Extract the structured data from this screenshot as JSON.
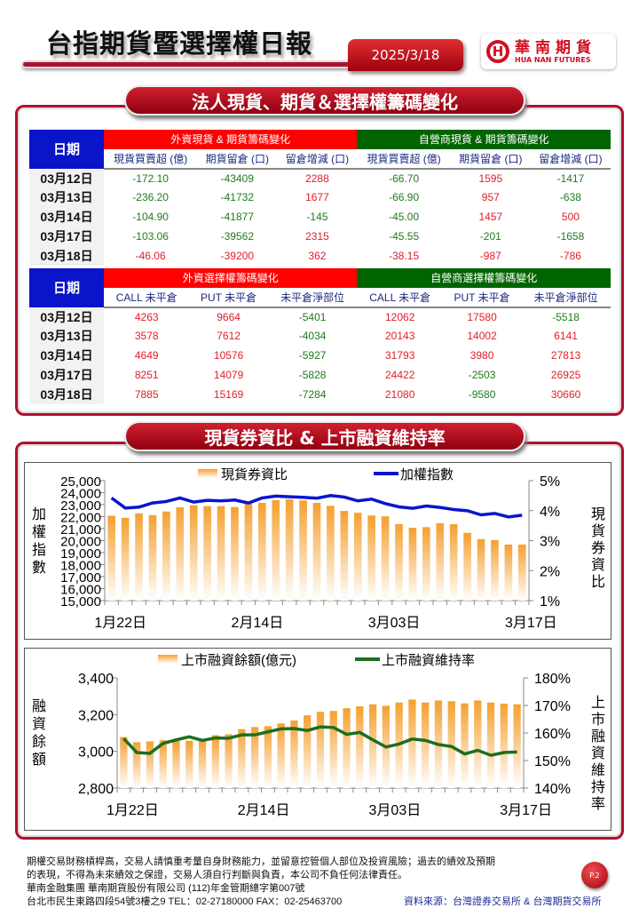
{
  "header": {
    "title": "台指期貨暨選擇權日報",
    "date": "2025/3/18",
    "logo_zh": "華南期貨",
    "logo_en": "HUA NAN FUTURES"
  },
  "section1": {
    "title": "法人現貨、期貨＆選擇權籌碼變化"
  },
  "table1": {
    "date_header": "日期",
    "group_foreign": "外資現貨 & 期貨籌碼變化",
    "group_dealer": "自營商現貨 & 期貨籌碼變化",
    "columns": [
      "現貨買賣超 (億)",
      "期貨留倉 (口)",
      "留倉增減 (口)",
      "現貨買賣超 (億)",
      "期貨留倉 (口)",
      "留倉增減 (口)"
    ],
    "rows": [
      {
        "date": "03月12日",
        "values": [
          "-172.10",
          "-43409",
          "2288",
          "-66.70",
          "1595",
          "-1417"
        ]
      },
      {
        "date": "03月13日",
        "values": [
          "-236.20",
          "-41732",
          "1677",
          "-66.90",
          "957",
          "-638"
        ]
      },
      {
        "date": "03月14日",
        "values": [
          "-104.90",
          "-41877",
          "-145",
          "-45.00",
          "1457",
          "500"
        ]
      },
      {
        "date": "03月17日",
        "values": [
          "-103.06",
          "-39562",
          "2315",
          "-45.55",
          "-201",
          "-1658"
        ]
      },
      {
        "date": "03月18日",
        "values": [
          "-46.06",
          "-39200",
          "362",
          "-38.15",
          "-987",
          "-786"
        ],
        "all_red": true
      }
    ]
  },
  "table2": {
    "date_header": "日期",
    "group_foreign": "外資選擇權籌碼變化",
    "group_dealer": "自營商選擇權籌碼變化",
    "columns": [
      "CALL 未平倉",
      "PUT  未平倉",
      "未平倉淨部位",
      "CALL 未平倉",
      "PUT  未平倉",
      "未平倉淨部位"
    ],
    "rows": [
      {
        "date": "03月12日",
        "values": [
          "4263",
          "9664",
          "-5401",
          "12062",
          "17580",
          "-5518"
        ]
      },
      {
        "date": "03月13日",
        "values": [
          "3578",
          "7612",
          "-4034",
          "20143",
          "14002",
          "6141"
        ]
      },
      {
        "date": "03月14日",
        "values": [
          "4649",
          "10576",
          "-5927",
          "31793",
          "3980",
          "27813"
        ]
      },
      {
        "date": "03月17日",
        "values": [
          "8251",
          "14079",
          "-5828",
          "24422",
          "-2503",
          "26925"
        ]
      },
      {
        "date": "03月18日",
        "values": [
          "7885",
          "15169",
          "-7284",
          "21080",
          "-9580",
          "30660"
        ]
      }
    ]
  },
  "section2": {
    "title": "現貨券資比 & 上市融資維持率"
  },
  "colors": {
    "positive": "#e0202a",
    "negative": "#1f7a1f",
    "index_line": "#0a14d0",
    "maint_line": "#1e6e1e",
    "bar": "#f5a030"
  },
  "chart_data": [
    {
      "type": "bar+line",
      "title": "",
      "legend": [
        "現貨券資比",
        "加權指數"
      ],
      "legend_position": "top",
      "ylabel_left": "加權指數",
      "ylabel_right": "現貨券資比",
      "ylim_left": [
        15000,
        25000
      ],
      "yticks_left": [
        "25,000",
        "24,000",
        "23,000",
        "22,000",
        "21,000",
        "20,000",
        "19,000",
        "18,000",
        "17,000",
        "16,000",
        "15,000"
      ],
      "ylim_right": [
        1,
        5
      ],
      "yticks_right": [
        "5%",
        "4%",
        "3%",
        "2%",
        "1%"
      ],
      "xticks": [
        {
          "index": 0,
          "label": "1月22日"
        },
        {
          "index": 10,
          "label": "2月14日"
        },
        {
          "index": 20,
          "label": "3月03日"
        },
        {
          "index": 30,
          "label": "3月17日"
        }
      ],
      "bars_pct": [
        3.83,
        3.76,
        3.91,
        3.85,
        3.97,
        4.11,
        4.18,
        4.15,
        4.15,
        4.12,
        4.24,
        4.26,
        4.35,
        4.38,
        4.34,
        4.26,
        4.16,
        3.99,
        3.93,
        3.84,
        3.81,
        3.55,
        3.43,
        3.45,
        3.58,
        3.55,
        3.26,
        3.05,
        3.02,
        2.87,
        2.87
      ],
      "line_index": [
        23561,
        22717,
        22792,
        23139,
        23263,
        23561,
        23213,
        23362,
        23313,
        23387,
        23139,
        23561,
        23710,
        23660,
        23610,
        23536,
        23759,
        23635,
        23313,
        23462,
        23089,
        22816,
        22692,
        22891,
        22767,
        22593,
        22494,
        22146,
        22270,
        21973,
        22122
      ]
    },
    {
      "type": "bar+line",
      "title": "",
      "legend": [
        "上市融資餘額(億元)",
        "上市融資維持率"
      ],
      "legend_position": "top",
      "ylabel_left": "融資餘額",
      "ylabel_right": "上市融資維持率",
      "ylim_left": [
        2800,
        3400
      ],
      "yticks_left": [
        "3,400",
        "3,200",
        "3,000",
        "2,800"
      ],
      "ylim_right": [
        140,
        180
      ],
      "yticks_right": [
        "180%",
        "170%",
        "160%",
        "150%",
        "140%"
      ],
      "xticks": [
        {
          "index": 0,
          "label": "1月22日"
        },
        {
          "index": 10,
          "label": "2月14日"
        },
        {
          "index": 20,
          "label": "3月03日"
        },
        {
          "index": 30,
          "label": "3月17日"
        }
      ],
      "bars_value": [
        3078,
        3050,
        3054,
        3060,
        3057,
        3058,
        3068,
        3088,
        3093,
        3121,
        3132,
        3137,
        3152,
        3168,
        3196,
        3215,
        3220,
        3235,
        3245,
        3256,
        3248,
        3266,
        3282,
        3266,
        3277,
        3273,
        3261,
        3277,
        3266,
        3260,
        3256
      ],
      "line_pct": [
        158.0,
        152.9,
        152.6,
        156.2,
        157.5,
        158.6,
        157.3,
        158.2,
        158.1,
        159.3,
        159.3,
        160.4,
        161.5,
        161.6,
        160.9,
        162.2,
        162.0,
        159.5,
        160.2,
        157.5,
        154.9,
        156.0,
        157.8,
        157.3,
        155.8,
        155.1,
        152.4,
        153.7,
        151.9,
        152.9,
        153.1
      ]
    }
  ],
  "footer": {
    "lines": [
      "期權交易財務槓桿高，交易人請慎重考量自身財務能力，並留意控管個人部位及投資風險；過去的績效及預期",
      "的表現，不得為未來績效之保證，交易人須自行判斷與負責，本公司不負任何法律責任。",
      "華南金融集團 華南期貨股份有限公司 (112)年金管期總字第007號",
      "台北市民生東路四段54號3樓之9  TEL：02-27180000  FAX：02-25463700"
    ],
    "source": "資料來源：台灣證券交易所 & 台灣期貨交易所",
    "page": "P.2"
  }
}
